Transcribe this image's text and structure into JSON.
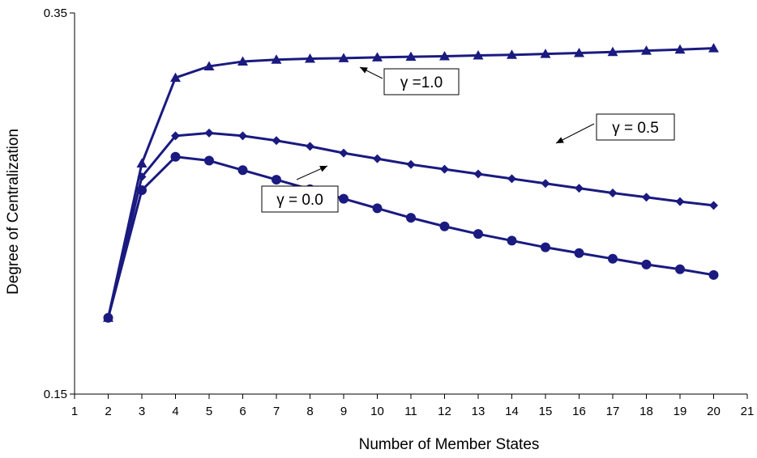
{
  "chart_data": {
    "type": "line",
    "title": "",
    "xlabel": "Number of Member States",
    "ylabel": "Degree of Centralization",
    "xlim": [
      1,
      21
    ],
    "ylim": [
      0.15,
      0.35
    ],
    "x_ticks": [
      "1",
      "2",
      "3",
      "4",
      "5",
      "6",
      "7",
      "8",
      "9",
      "10",
      "11",
      "12",
      "13",
      "14",
      "15",
      "16",
      "17",
      "18",
      "19",
      "20",
      "21"
    ],
    "y_ticks": [
      "0.15",
      "0.35"
    ],
    "grid": false,
    "line_color": "#1a1a80",
    "x": [
      2,
      3,
      4,
      5,
      6,
      7,
      8,
      9,
      10,
      11,
      12,
      13,
      14,
      15,
      16,
      17,
      18,
      19,
      20
    ],
    "series": [
      {
        "marker": "triangle",
        "values": [
          0.19,
          0.271,
          0.316,
          0.322,
          0.3245,
          0.3255,
          0.326,
          0.3263,
          0.3267,
          0.327,
          0.3273,
          0.3277,
          0.328,
          0.3285,
          0.329,
          0.3295,
          0.3302,
          0.3308,
          0.3315
        ]
      },
      {
        "marker": "diamond",
        "values": [
          0.19,
          0.264,
          0.2855,
          0.287,
          0.2855,
          0.283,
          0.28,
          0.2765,
          0.2735,
          0.2705,
          0.268,
          0.2655,
          0.263,
          0.2605,
          0.258,
          0.2555,
          0.2533,
          0.251,
          0.249
        ]
      },
      {
        "marker": "circle",
        "values": [
          0.19,
          0.257,
          0.2745,
          0.2725,
          0.2675,
          0.2625,
          0.2575,
          0.2525,
          0.2475,
          0.2425,
          0.238,
          0.234,
          0.2305,
          0.227,
          0.224,
          0.221,
          0.218,
          0.2155,
          0.2125
        ]
      }
    ],
    "annotations": [
      {
        "text": "γ =1.0",
        "series": 0
      },
      {
        "text": "γ = 0.5",
        "series": 1
      },
      {
        "text": "γ = 0.0",
        "series": 2
      }
    ]
  }
}
